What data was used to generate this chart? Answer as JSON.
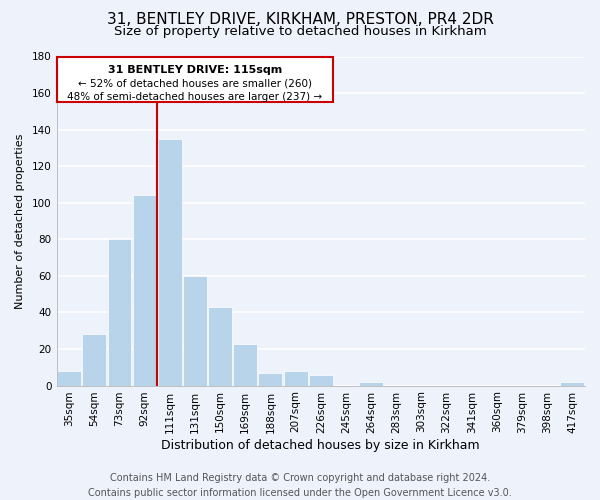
{
  "title": "31, BENTLEY DRIVE, KIRKHAM, PRESTON, PR4 2DR",
  "subtitle": "Size of property relative to detached houses in Kirkham",
  "xlabel": "Distribution of detached houses by size in Kirkham",
  "ylabel": "Number of detached properties",
  "categories": [
    "35sqm",
    "54sqm",
    "73sqm",
    "92sqm",
    "111sqm",
    "131sqm",
    "150sqm",
    "169sqm",
    "188sqm",
    "207sqm",
    "226sqm",
    "245sqm",
    "264sqm",
    "283sqm",
    "303sqm",
    "322sqm",
    "341sqm",
    "360sqm",
    "379sqm",
    "398sqm",
    "417sqm"
  ],
  "values": [
    8,
    28,
    80,
    104,
    135,
    60,
    43,
    23,
    7,
    8,
    6,
    0,
    2,
    0,
    0,
    0,
    0,
    0,
    0,
    0,
    2
  ],
  "bar_color": "#b8d4ea",
  "highlight_index": 4,
  "vline_color": "#cc0000",
  "annotation_title": "31 BENTLEY DRIVE: 115sqm",
  "annotation_line1": "← 52% of detached houses are smaller (260)",
  "annotation_line2": "48% of semi-detached houses are larger (237) →",
  "annotation_box_edge_color": "#cc0000",
  "footer_line1": "Contains HM Land Registry data © Crown copyright and database right 2024.",
  "footer_line2": "Contains public sector information licensed under the Open Government Licence v3.0.",
  "background_color": "#eef2fb",
  "grid_color": "#d8e0f0",
  "ylim": [
    0,
    180
  ],
  "yticks": [
    0,
    20,
    40,
    60,
    80,
    100,
    120,
    140,
    160,
    180
  ],
  "title_fontsize": 11,
  "subtitle_fontsize": 9.5,
  "xlabel_fontsize": 9,
  "ylabel_fontsize": 8,
  "tick_fontsize": 7.5,
  "footer_fontsize": 7
}
